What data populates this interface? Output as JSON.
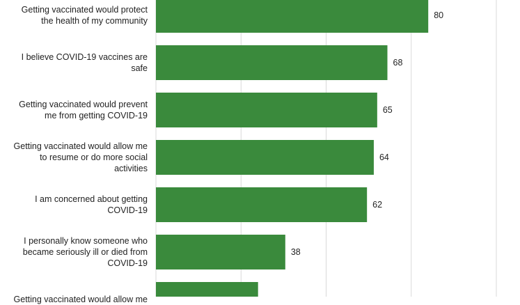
{
  "chart_data": {
    "type": "bar",
    "orientation": "horizontal",
    "categories": [
      "Getting vaccinated would protect\nthe health of my community",
      "I believe COVID-19 vaccines are\nsafe",
      "Getting vaccinated would prevent\nme from getting COVID-19",
      "Getting vaccinated would allow me\nto resume or do more social\nactivities",
      "I am concerned about getting\nCOVID-19",
      "I personally know someone who\nbecame seriously ill or died from\nCOVID-19",
      "Getting vaccinated would allow me"
    ],
    "values": [
      80,
      68,
      65,
      64,
      62,
      38,
      30
    ],
    "data_labels": [
      "80",
      "68",
      "65",
      "64",
      "62",
      "38",
      ""
    ],
    "xlim": [
      0,
      100
    ],
    "grid": true,
    "colors": {
      "bar": "#3a8a3c",
      "grid": "#d9d9d9",
      "text": "#222222"
    }
  }
}
